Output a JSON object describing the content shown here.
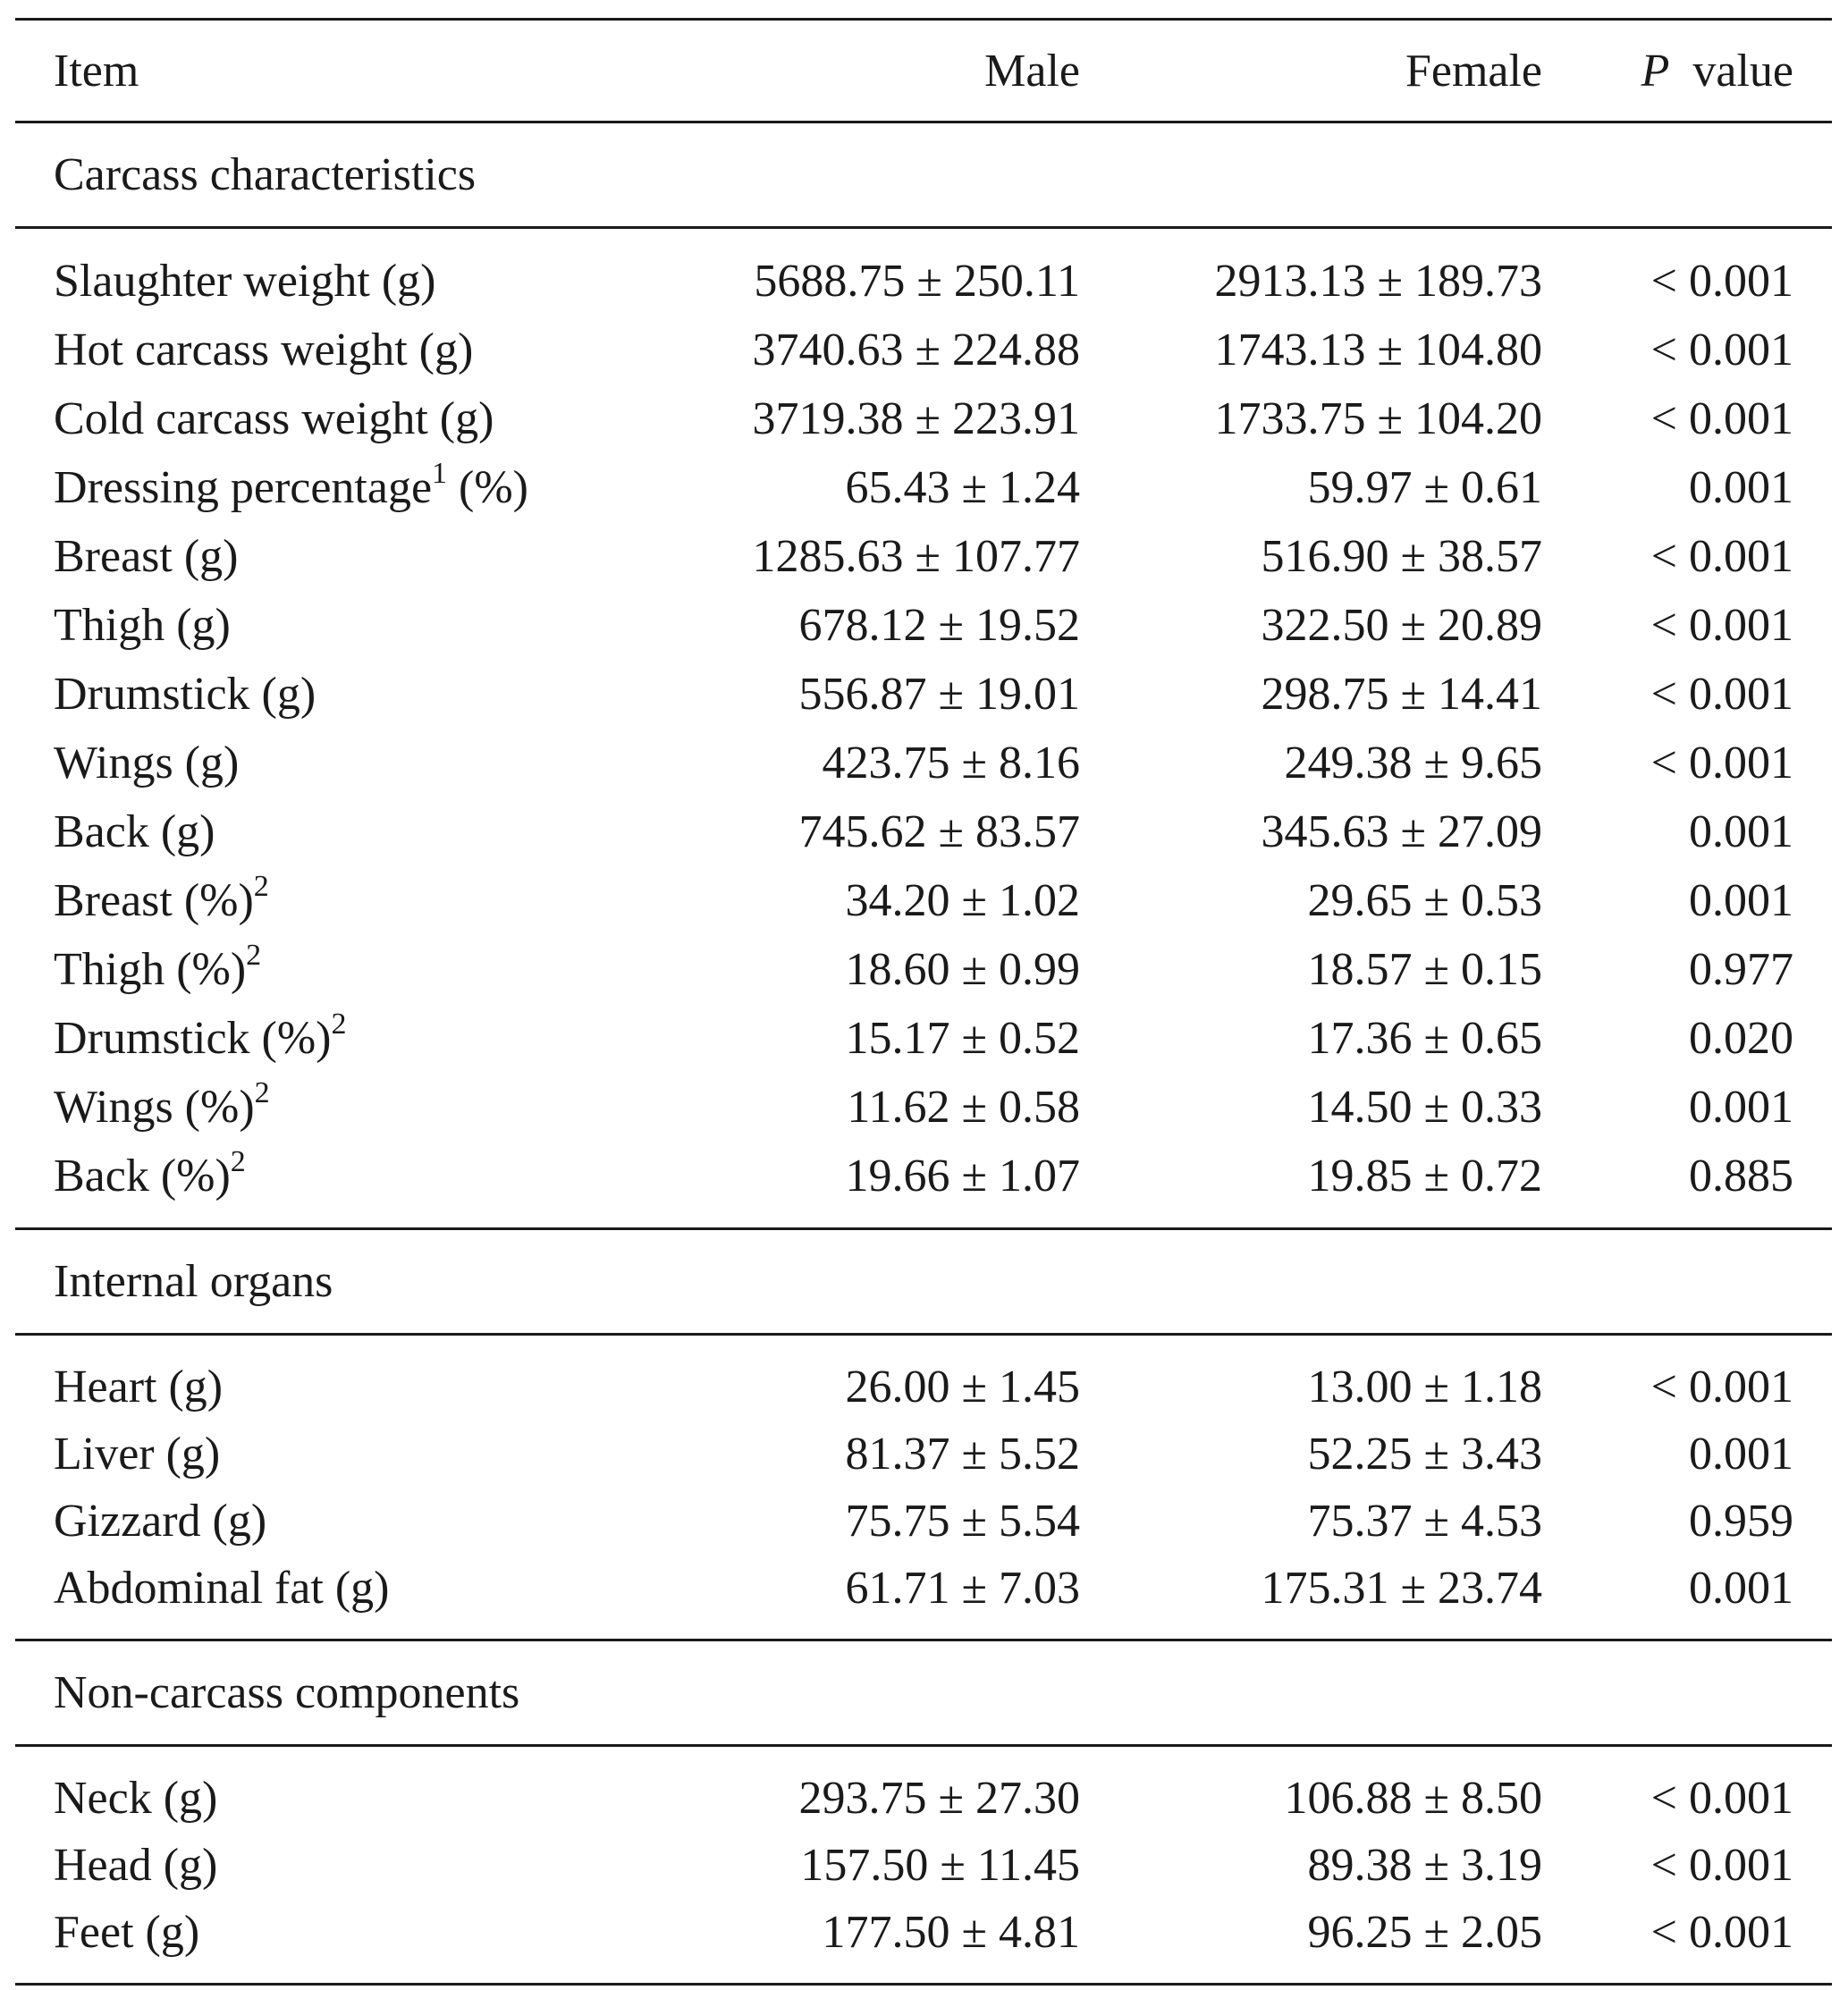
{
  "header": {
    "item": "Item",
    "male": "Male",
    "female": "Female",
    "p_italic": "P",
    "p_rest": "value"
  },
  "sections": [
    {
      "title": "Carcass characteristics",
      "rows": [
        {
          "item": "Slaughter weight (g)",
          "male": "5688.75 ± 250.11",
          "female": "2913.13 ± 189.73",
          "p": "< 0.001"
        },
        {
          "item": "Hot carcass weight (g)",
          "male": "3740.63 ± 224.88",
          "female": "1743.13 ± 104.80",
          "p": "< 0.001"
        },
        {
          "item": "Cold carcass weight (g)",
          "male": "3719.38 ± 223.91",
          "female": "1733.75 ± 104.20",
          "p": "< 0.001"
        },
        {
          "item": "Dressing percentage",
          "sup": "1",
          "item_after": " (%)",
          "male": "65.43 ± 1.24",
          "female": "59.97 ± 0.61",
          "p": "0.001"
        },
        {
          "item": "Breast (g)",
          "male": "1285.63 ± 107.77",
          "female": "516.90 ± 38.57",
          "p": "< 0.001"
        },
        {
          "item": "Thigh (g)",
          "male": "678.12 ± 19.52",
          "female": "322.50 ± 20.89",
          "p": "< 0.001"
        },
        {
          "item": "Drumstick (g)",
          "male": "556.87 ± 19.01",
          "female": "298.75 ± 14.41",
          "p": "< 0.001"
        },
        {
          "item": "Wings (g)",
          "male": "423.75 ± 8.16",
          "female": "249.38 ± 9.65",
          "p": "< 0.001"
        },
        {
          "item": "Back (g)",
          "male": "745.62 ± 83.57",
          "female": "345.63 ± 27.09",
          "p": "0.001"
        },
        {
          "item": "Breast (%)",
          "sup": "2",
          "male": "34.20 ± 1.02",
          "female": "29.65 ± 0.53",
          "p": "0.001"
        },
        {
          "item": "Thigh (%)",
          "sup": "2",
          "male": "18.60 ± 0.99",
          "female": "18.57 ± 0.15",
          "p": "0.977"
        },
        {
          "item": "Drumstick (%)",
          "sup": "2",
          "male": "15.17 ± 0.52",
          "female": "17.36 ± 0.65",
          "p": "0.020"
        },
        {
          "item": "Wings (%)",
          "sup": "2",
          "male": "11.62 ± 0.58",
          "female": "14.50 ± 0.33",
          "p": "0.001"
        },
        {
          "item": "Back (%)",
          "sup": "2",
          "male": "19.66 ± 1.07",
          "female": "19.85 ± 0.72",
          "p": "0.885"
        }
      ]
    },
    {
      "title": "Internal organs",
      "rows": [
        {
          "item": "Heart (g)",
          "male": "26.00 ± 1.45",
          "female": "13.00 ± 1.18",
          "p": "< 0.001"
        },
        {
          "item": "Liver (g)",
          "male": "81.37 ± 5.52",
          "female": "52.25 ± 3.43",
          "p": "0.001"
        },
        {
          "item": "Gizzard (g)",
          "male": "75.75 ± 5.54",
          "female": "75.37 ± 4.53",
          "p": "0.959"
        },
        {
          "item": "Abdominal fat (g)",
          "male": "61.71 ± 7.03",
          "female": "175.31 ± 23.74",
          "p": "0.001"
        }
      ]
    },
    {
      "title": "Non-carcass components",
      "rows": [
        {
          "item": "Neck (g)",
          "male": "293.75 ± 27.30",
          "female": "106.88 ± 8.50",
          "p": "< 0.001"
        },
        {
          "item": "Head (g)",
          "male": "157.50 ± 11.45",
          "female": "89.38 ± 3.19",
          "p": "< 0.001"
        },
        {
          "item": "Feet (g)",
          "male": "177.50 ± 4.81",
          "female": "96.25 ± 2.05",
          "p": "< 0.001"
        }
      ]
    }
  ]
}
